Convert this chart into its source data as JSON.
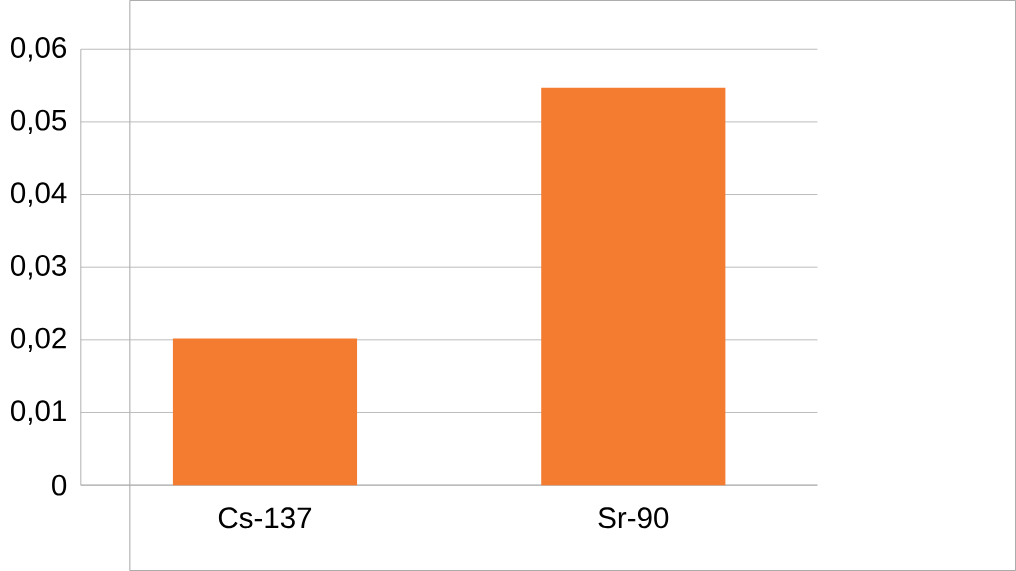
{
  "chart_data": {
    "type": "bar",
    "categories": [
      "Cs-137",
      "Sr-90"
    ],
    "values": [
      0.0202,
      0.0547
    ],
    "color": "#f47c30",
    "ylim": [
      0,
      0.06
    ],
    "yticks": [
      {
        "value": 0,
        "label": "0"
      },
      {
        "value": 0.01,
        "label": "0,01"
      },
      {
        "value": 0.02,
        "label": "0,02"
      },
      {
        "value": 0.03,
        "label": "0,03"
      },
      {
        "value": 0.04,
        "label": "0,04"
      },
      {
        "value": 0.05,
        "label": "0,05"
      },
      {
        "value": 0.06,
        "label": "0,06"
      }
    ],
    "grid": "y"
  }
}
